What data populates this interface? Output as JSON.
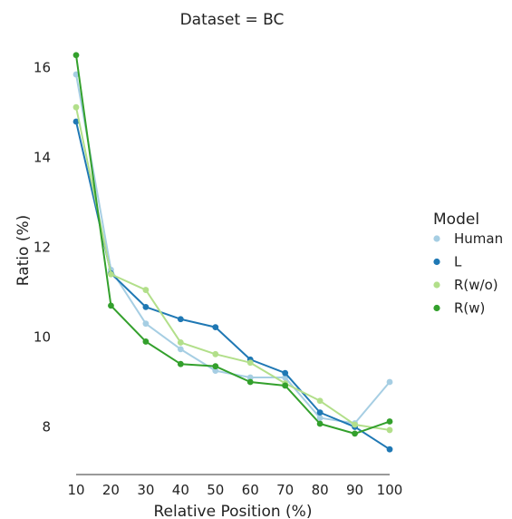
{
  "chart_data": {
    "type": "line",
    "title": "Dataset = BC",
    "xlabel": "Relative Position (%)",
    "ylabel": "Ratio (%)",
    "x": [
      10,
      20,
      30,
      40,
      50,
      60,
      70,
      80,
      90,
      100
    ],
    "xlim": [
      10,
      100
    ],
    "ylim": [
      7.1,
      16.7
    ],
    "yticks": [
      8,
      10,
      12,
      14,
      16
    ],
    "grid": false,
    "legend": {
      "title": "Model",
      "placement": "right"
    },
    "series": [
      {
        "name": "Human",
        "color": "#a6cee3",
        "values": [
          15.85,
          11.5,
          10.3,
          9.73,
          9.25,
          9.1,
          9.1,
          8.2,
          8.08,
          9.0
        ]
      },
      {
        "name": "L",
        "color": "#1f78b4",
        "values": [
          14.8,
          11.42,
          10.67,
          10.4,
          10.22,
          9.5,
          9.2,
          8.32,
          8.0,
          7.5
        ]
      },
      {
        "name": "R(w/o)",
        "color": "#b2df8a",
        "values": [
          15.12,
          11.4,
          11.05,
          9.88,
          9.62,
          9.43,
          8.97,
          8.58,
          8.05,
          7.93
        ]
      },
      {
        "name": "R(w)",
        "color": "#33a02c",
        "values": [
          16.28,
          10.7,
          9.9,
          9.4,
          9.35,
          9.0,
          8.92,
          8.07,
          7.85,
          8.12
        ]
      }
    ]
  }
}
